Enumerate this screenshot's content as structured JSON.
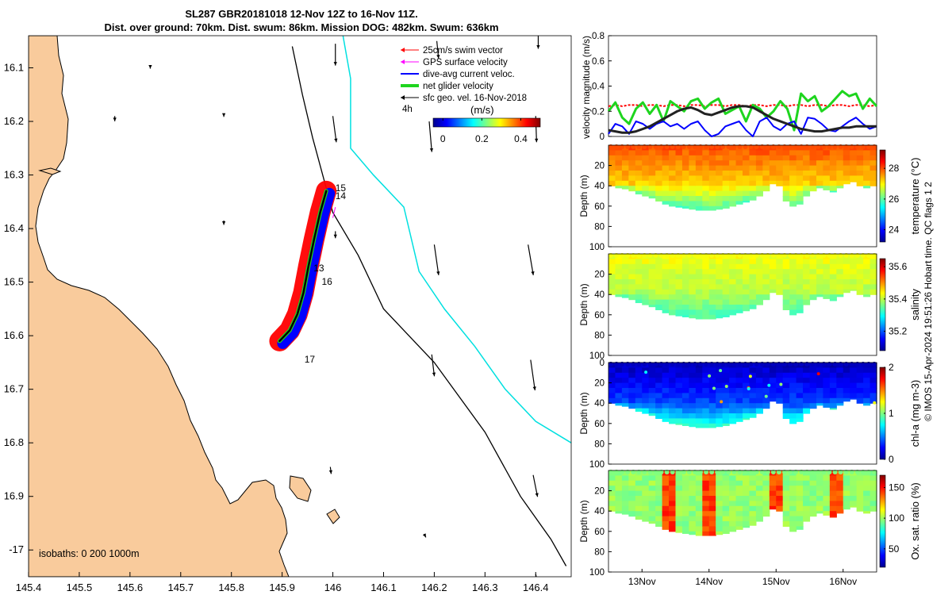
{
  "title_line1": "SL287 GBR20181018 12-Nov 12Z to 16-Nov 11Z.",
  "title_line2": "Dist. over ground: 70km. Dist. swum: 86km. Mission DOG: 482km. Swum: 636km",
  "credit": "© IMOS 15-Apr-2024 19:51:26 Hobart time. QC flags 1  2",
  "colors": {
    "land": "#f9cb9c",
    "swim": "#ff0000",
    "gps": "#ff00ff",
    "dive": "#0000ff",
    "net": "#1ed51e",
    "geo": "#000000",
    "isobath": "#00e0e0"
  },
  "chart_data": [
    {
      "type": "map",
      "xlim": [
        145.4,
        146.47
      ],
      "ylim": [
        -17.05,
        -16.04
      ],
      "x_ticks": [
        "145.4",
        "145.5",
        "145.6",
        "145.7",
        "145.8",
        "145.9",
        "146",
        "146.1",
        "146.2",
        "146.3",
        "146.4"
      ],
      "x_tick_values": [
        145.4,
        145.5,
        145.6,
        145.7,
        145.8,
        145.9,
        146.0,
        146.1,
        146.2,
        146.3,
        146.4
      ],
      "y_ticks": [
        "16.1",
        "16.2",
        "16.3",
        "16.4",
        "16.5",
        "16.6",
        "16.7",
        "16.8",
        "16.9",
        "-17"
      ],
      "y_tick_values": [
        -16.1,
        -16.2,
        -16.3,
        -16.4,
        -16.5,
        -16.6,
        -16.7,
        -16.8,
        -16.9,
        -17.0
      ],
      "legend": [
        {
          "label": "25cm/s swim vector",
          "color": "#ff0000"
        },
        {
          "label": "GPS surface velocity",
          "color": "#ff00ff"
        },
        {
          "label": "dive-avg current veloc.",
          "color": "#0000ff"
        },
        {
          "label": "net glider velocity",
          "color": "#1ed51e"
        },
        {
          "label": "sfc geo. vel. 16-Nov-2018",
          "color": "#000000"
        }
      ],
      "interval_label": "4h",
      "colorbar": {
        "label": "(m/s)",
        "ticks": [
          "0",
          "0.2",
          "0.4"
        ],
        "tick_values": [
          0,
          0.2,
          0.4
        ],
        "range": [
          -0.05,
          0.5
        ]
      },
      "isobaths_label": "isobaths: 0   200  1000m",
      "day_labels": [
        {
          "label": "15",
          "lon": 146.005,
          "lat": -16.33
        },
        {
          "label": "14",
          "lon": 146.005,
          "lat": -16.345
        },
        {
          "label": "13",
          "lon": 145.962,
          "lat": -16.48
        },
        {
          "label": "16",
          "lon": 145.978,
          "lat": -16.505
        },
        {
          "label": "17",
          "lon": 145.944,
          "lat": -16.65
        }
      ],
      "track": [
        [
          145.987,
          -16.33
        ],
        [
          145.975,
          -16.37
        ],
        [
          145.963,
          -16.42
        ],
        [
          145.952,
          -16.47
        ],
        [
          145.942,
          -16.52
        ],
        [
          145.93,
          -16.56
        ],
        [
          145.915,
          -16.59
        ],
        [
          145.895,
          -16.61
        ]
      ],
      "isobath_1000": [
        [
          146.02,
          -16.04
        ],
        [
          146.035,
          -16.12
        ],
        [
          146.035,
          -16.25
        ],
        [
          146.08,
          -16.3
        ],
        [
          146.14,
          -16.36
        ],
        [
          146.17,
          -16.48
        ],
        [
          146.22,
          -16.55
        ],
        [
          146.28,
          -16.62
        ],
        [
          146.34,
          -16.7
        ],
        [
          146.4,
          -16.76
        ],
        [
          146.47,
          -16.8
        ]
      ],
      "isobath_200": [
        [
          145.92,
          -16.06
        ],
        [
          145.94,
          -16.15
        ],
        [
          145.96,
          -16.23
        ],
        [
          146.0,
          -16.37
        ],
        [
          146.05,
          -16.45
        ],
        [
          146.1,
          -16.55
        ],
        [
          146.2,
          -16.65
        ],
        [
          146.3,
          -16.78
        ],
        [
          146.37,
          -16.9
        ],
        [
          146.43,
          -16.98
        ],
        [
          146.46,
          -17.03
        ]
      ],
      "geo_vectors": [
        {
          "lon": 146.005,
          "lat": -16.055,
          "u": 0.0,
          "v": -0.25
        },
        {
          "lon": 146.205,
          "lat": -16.05,
          "u": 0.02,
          "v": -0.2
        },
        {
          "lon": 146.405,
          "lat": -16.04,
          "u": 0.0,
          "v": -0.15
        },
        {
          "lon": 146.0,
          "lat": -16.19,
          "u": 0.04,
          "v": -0.3
        },
        {
          "lon": 146.19,
          "lat": -16.2,
          "u": 0.03,
          "v": -0.35
        },
        {
          "lon": 146.4,
          "lat": -16.19,
          "u": 0.01,
          "v": -0.3
        },
        {
          "lon": 146.2,
          "lat": -16.43,
          "u": 0.05,
          "v": -0.35
        },
        {
          "lon": 146.385,
          "lat": -16.43,
          "u": 0.06,
          "v": -0.35
        },
        {
          "lon": 146.005,
          "lat": -16.405,
          "u": 0.0,
          "v": -0.08
        },
        {
          "lon": 146.195,
          "lat": -16.635,
          "u": 0.03,
          "v": -0.25
        },
        {
          "lon": 146.39,
          "lat": -16.645,
          "u": 0.05,
          "v": -0.35
        },
        {
          "lon": 146.395,
          "lat": -16.86,
          "u": 0.05,
          "v": -0.25
        },
        {
          "lon": 145.995,
          "lat": -16.845,
          "u": 0.01,
          "v": -0.08
        },
        {
          "lon": 146.4,
          "lat": -17.045,
          "u": 0.02,
          "v": -0.1
        },
        {
          "lon": 145.64,
          "lat": -16.095,
          "u": 0.0,
          "v": -0.04
        },
        {
          "lon": 145.57,
          "lat": -16.19,
          "u": 0.0,
          "v": -0.06
        },
        {
          "lon": 145.785,
          "lat": -16.185,
          "u": 0.0,
          "v": -0.04
        },
        {
          "lon": 145.785,
          "lat": -16.385,
          "u": 0.0,
          "v": -0.05
        },
        {
          "lon": 146.18,
          "lat": -16.97,
          "u": 0.02,
          "v": -0.04
        }
      ]
    },
    {
      "type": "line",
      "ylabel": "velocity magnitude (m/s)",
      "ylim": [
        0,
        0.8
      ],
      "y_ticks": [
        "0",
        "0.2",
        "0.4",
        "0.6",
        "0.8"
      ],
      "y_tick_values": [
        0,
        0.2,
        0.4,
        0.6,
        0.8
      ],
      "x": [
        0,
        0.1,
        0.2,
        0.3,
        0.4,
        0.5,
        0.6,
        0.7,
        0.8,
        0.9,
        1.0,
        1.1,
        1.2,
        1.3,
        1.4,
        1.5,
        1.6,
        1.7,
        1.8,
        1.9,
        2.0,
        2.1,
        2.2,
        2.3,
        2.4,
        2.5,
        2.6,
        2.7,
        2.8,
        2.9,
        3.0,
        3.1,
        3.2,
        3.3,
        3.4,
        3.5,
        3.6,
        3.7,
        3.8,
        3.9
      ],
      "series": [
        {
          "name": "swim speed",
          "color": "#ff0000",
          "values": [
            0.24,
            0.25,
            0.24,
            0.25,
            0.25,
            0.24,
            0.25,
            0.25,
            0.24,
            0.25,
            0.25,
            0.24,
            0.25,
            0.25,
            0.24,
            0.25,
            0.25,
            0.24,
            0.25,
            0.25,
            0.24,
            0.25,
            0.25,
            0.24,
            0.25,
            0.25,
            0.24,
            0.25,
            0.25,
            0.24,
            0.25,
            0.25,
            0.24,
            0.25,
            0.25,
            0.24,
            0.25,
            0.25,
            0.24,
            0.25
          ]
        },
        {
          "name": "net glider velocity",
          "color": "#1ed51e",
          "values": [
            0.2,
            0.27,
            0.15,
            0.1,
            0.22,
            0.27,
            0.18,
            0.25,
            0.12,
            0.28,
            0.24,
            0.2,
            0.28,
            0.3,
            0.22,
            0.27,
            0.3,
            0.18,
            0.21,
            0.24,
            0.12,
            0.25,
            0.22,
            0.15,
            0.2,
            0.28,
            0.22,
            0.05,
            0.34,
            0.28,
            0.32,
            0.2,
            0.24,
            0.3,
            0.36,
            0.32,
            0.34,
            0.22,
            0.3,
            0.24
          ]
        },
        {
          "name": "dive-avg current",
          "color": "#0000ff",
          "values": [
            0.02,
            0.1,
            0.08,
            0.02,
            0.12,
            0.1,
            0.06,
            0.1,
            0.12,
            0.08,
            0.1,
            0.06,
            0.1,
            0.12,
            0.05,
            0.0,
            0.02,
            0.08,
            0.1,
            0.12,
            0.05,
            0.0,
            0.12,
            0.15,
            0.08,
            0.05,
            0.1,
            0.12,
            0.02,
            0.15,
            0.14,
            0.1,
            0.05,
            0.04,
            0.08,
            0.12,
            0.15,
            0.1,
            0.06,
            0.08
          ]
        },
        {
          "name": "sfc geo. velocity",
          "color": "#222222",
          "values": [
            0.05,
            0.04,
            0.03,
            0.03,
            0.04,
            0.06,
            0.08,
            0.11,
            0.14,
            0.17,
            0.2,
            0.22,
            0.23,
            0.21,
            0.18,
            0.17,
            0.19,
            0.21,
            0.23,
            0.24,
            0.24,
            0.23,
            0.2,
            0.17,
            0.14,
            0.12,
            0.1,
            0.08,
            0.06,
            0.05,
            0.04,
            0.04,
            0.05,
            0.06,
            0.07,
            0.07,
            0.08,
            0.08,
            0.08,
            0.08
          ]
        }
      ]
    },
    {
      "type": "heatmap",
      "ylabel": "Depth (m)",
      "clabel": "temperature (°C)",
      "ylim": [
        100,
        0
      ],
      "y_ticks": [
        "20",
        "40",
        "60",
        "80",
        "100"
      ],
      "y_tick_values": [
        20,
        40,
        60,
        80,
        100
      ],
      "clim": [
        23.2,
        29.2
      ],
      "c_ticks": [
        "24",
        "26",
        "28"
      ],
      "c_tick_values": [
        24,
        26,
        28
      ],
      "surface": 28.0,
      "deep": 25.8,
      "mixed_layer_depth": 35,
      "bottom_depth": [
        40,
        42,
        43,
        45,
        48,
        50,
        52,
        55,
        58,
        60,
        61,
        62,
        63,
        64,
        64,
        64,
        63,
        62,
        60,
        58,
        56,
        54,
        50,
        45,
        38,
        40,
        55,
        60,
        58,
        50,
        45,
        42,
        44,
        46,
        42,
        38,
        36,
        40,
        42,
        40
      ]
    },
    {
      "type": "heatmap",
      "ylabel": "Depth (m)",
      "clabel": "salinity",
      "ylim": [
        100,
        0
      ],
      "y_ticks": [
        "20",
        "40",
        "60",
        "80",
        "100"
      ],
      "y_tick_values": [
        20,
        40,
        60,
        80,
        100
      ],
      "clim": [
        35.08,
        35.65
      ],
      "c_ticks": [
        "35.2",
        "35.4",
        "35.6"
      ],
      "c_tick_values": [
        35.2,
        35.4,
        35.6
      ],
      "surface": 35.43,
      "deep": 35.33,
      "mixed_layer_depth": 35,
      "bottom_depth": [
        40,
        42,
        43,
        45,
        48,
        50,
        52,
        55,
        58,
        60,
        61,
        62,
        63,
        64,
        64,
        64,
        63,
        62,
        60,
        58,
        56,
        54,
        50,
        45,
        38,
        40,
        55,
        60,
        58,
        50,
        45,
        42,
        44,
        46,
        42,
        38,
        36,
        40,
        42,
        40
      ]
    },
    {
      "type": "heatmap",
      "ylabel": "Depth (m)",
      "clabel": "chl-a (mg m-3)",
      "ylim": [
        100,
        0
      ],
      "y_ticks": [
        "0",
        "20",
        "40",
        "60",
        "80",
        "100"
      ],
      "y_tick_values": [
        0,
        20,
        40,
        60,
        80,
        100
      ],
      "clim": [
        0,
        2
      ],
      "c_ticks": [
        "0",
        "1",
        "2"
      ],
      "c_tick_values": [
        0,
        1,
        2
      ],
      "surface": 0.12,
      "deep": 0.9,
      "mixed_layer_depth": 38,
      "bottom_depth": [
        40,
        42,
        43,
        45,
        48,
        50,
        52,
        55,
        58,
        60,
        61,
        62,
        63,
        64,
        64,
        64,
        63,
        62,
        60,
        58,
        56,
        54,
        50,
        45,
        38,
        40,
        55,
        60,
        58,
        50,
        45,
        42,
        44,
        46,
        42,
        38,
        36,
        40,
        42,
        40
      ]
    },
    {
      "type": "heatmap",
      "ylabel": "Depth (m)",
      "clabel": "Ox. sat. ratio (%)",
      "ylim": [
        100,
        0
      ],
      "y_ticks": [
        "20",
        "40",
        "60",
        "80",
        "100"
      ],
      "y_tick_values": [
        20,
        40,
        60,
        80,
        100
      ],
      "clim": [
        20,
        170
      ],
      "c_ticks": [
        "50",
        "100",
        "150"
      ],
      "c_tick_values": [
        50,
        100,
        150
      ],
      "surface": 95,
      "deep": 95,
      "mixed_layer_depth": 35,
      "bottom_depth": [
        40,
        42,
        43,
        45,
        48,
        50,
        52,
        55,
        58,
        60,
        61,
        62,
        63,
        64,
        64,
        64,
        63,
        62,
        60,
        58,
        56,
        54,
        50,
        45,
        38,
        40,
        55,
        60,
        58,
        50,
        45,
        42,
        44,
        46,
        42,
        38,
        36,
        40,
        42,
        40
      ],
      "x_ticks": [
        "13Nov",
        "14Nov",
        "15Nov",
        "16Nov"
      ],
      "x_tick_values": [
        0.5,
        1.5,
        2.5,
        3.5
      ]
    }
  ]
}
